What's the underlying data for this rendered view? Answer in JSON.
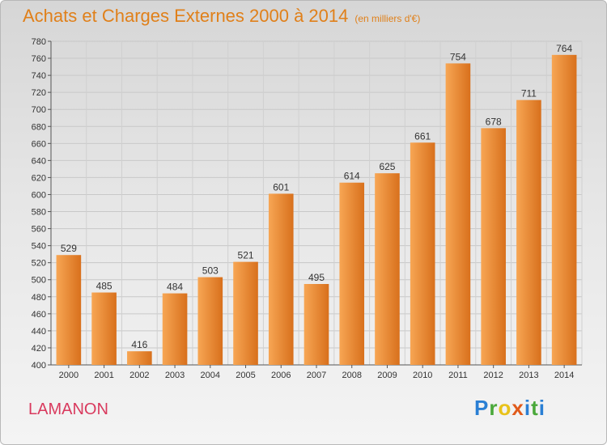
{
  "title": "Achats et Charges Externes 2000 à 2014",
  "subtitle": "(en milliers d'€)",
  "commune": "LAMANON",
  "logo": {
    "text": "Proxiti",
    "letters": [
      "P",
      "r",
      "o",
      "x",
      "i",
      "t",
      "i"
    ],
    "colors": [
      "#2a7fd4",
      "#4aa83a",
      "#e8c21a",
      "#e05a1a",
      "#2a7fd4",
      "#4aa83a",
      "#2a7fd4"
    ]
  },
  "colors": {
    "title": "#e0801a",
    "bar_light": "#f7a654",
    "bar_dark": "#d8701c",
    "commune": "#d93a5e"
  },
  "chart_data": {
    "type": "bar",
    "categories": [
      "2000",
      "2001",
      "2002",
      "2003",
      "2004",
      "2005",
      "2006",
      "2007",
      "2008",
      "2009",
      "2010",
      "2011",
      "2012",
      "2013",
      "2014"
    ],
    "values": [
      529,
      485,
      416,
      484,
      503,
      521,
      601,
      495,
      614,
      625,
      661,
      754,
      678,
      711,
      764
    ],
    "ylim": [
      400,
      780
    ],
    "yticks": [
      400,
      420,
      440,
      460,
      480,
      500,
      520,
      540,
      560,
      580,
      600,
      620,
      640,
      660,
      680,
      700,
      720,
      740,
      760,
      780
    ],
    "grid": true,
    "data_labels": true
  }
}
